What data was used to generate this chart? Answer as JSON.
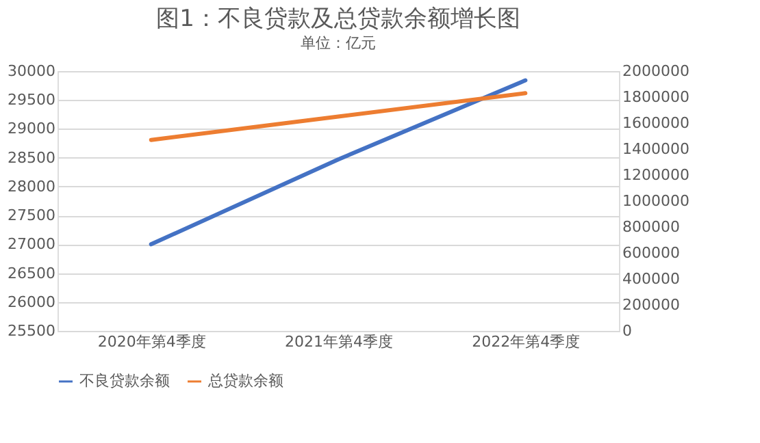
{
  "chart_data": {
    "type": "line",
    "title": "图1：不良贷款及总贷款余额增长图",
    "subtitle": "单位：亿元",
    "categories": [
      "2020年第4季度",
      "2021年第4季度",
      "2022年第4季度"
    ],
    "series": [
      {
        "name": "不良贷款余额",
        "color": "#4472c4",
        "values": [
          27000,
          28470,
          29840
        ]
      },
      {
        "name": "总贷款余额",
        "color": "#ed7d31",
        "values": [
          1470000,
          1650000,
          1830000
        ],
        "axis": "y2"
      }
    ],
    "ylim": [
      25500,
      30000
    ],
    "yticks": [
      25500,
      26000,
      26500,
      27000,
      27500,
      28000,
      28500,
      29000,
      29500,
      30000
    ],
    "y2lim": [
      0,
      2000000
    ],
    "y2ticks": [
      0,
      200000,
      400000,
      600000,
      800000,
      1000000,
      1200000,
      1400000,
      1600000,
      1800000,
      2000000
    ],
    "grid": "y",
    "legend": "bottom"
  }
}
